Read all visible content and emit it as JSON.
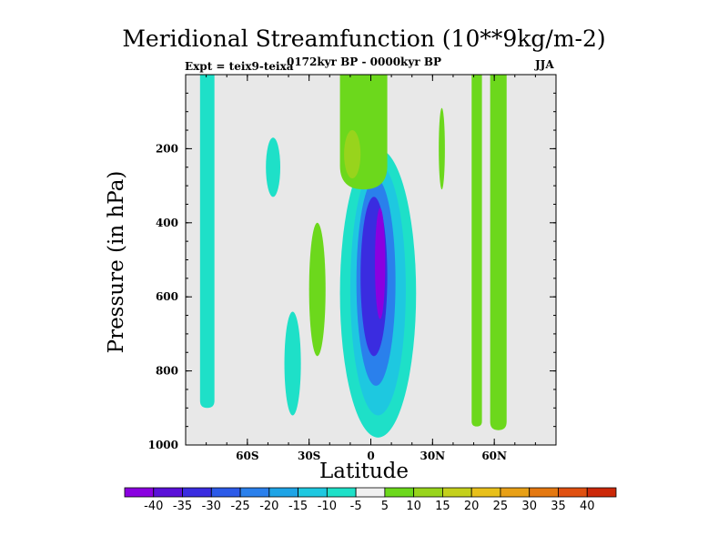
{
  "chart_data": {
    "type": "contour",
    "title": "Meridional Streamfunction (10**9kg/m-2)",
    "subtitle": "0172kyr BP - 0000kyr BP",
    "experiment": "Expt = teix9-teixa",
    "season": "JJA",
    "xlabel": "Latitude",
    "ylabel": "Pressure (in hPa)",
    "xlim": [
      -90,
      90
    ],
    "ylim": [
      1000,
      0
    ],
    "x_ticks": [
      -60,
      -30,
      0,
      30,
      60
    ],
    "x_tick_labels": [
      "60S",
      "30S",
      "0",
      "30N",
      "60N"
    ],
    "y_ticks": [
      200,
      400,
      600,
      800,
      1000
    ],
    "y_tick_labels": [
      "200",
      "400",
      "600",
      "800",
      "1000"
    ],
    "background_color": "#e8e8e8",
    "colorbar": {
      "labels": [
        "-40",
        "-35",
        "-30",
        "-25",
        "-20",
        "-15",
        "-10",
        "-5",
        "5",
        "10",
        "15",
        "20",
        "25",
        "30",
        "35",
        "40"
      ],
      "colors": [
        "#8a00e0",
        "#5a10d8",
        "#3a2ce0",
        "#2c5ae8",
        "#2a80ec",
        "#1ea4e6",
        "#1ec8e0",
        "#1ee0c8",
        "#f0f0f0",
        "#6cd81c",
        "#98d41c",
        "#c4d01c",
        "#e8c01a",
        "#e8a016",
        "#e47810",
        "#e05010",
        "#cc2808"
      ]
    },
    "regions": [
      {
        "level": -5,
        "lat_range": [
          -83,
          -76
        ],
        "p_range": [
          0,
          900
        ]
      },
      {
        "level": -5,
        "lat_range": [
          -51,
          -44
        ],
        "p_range": [
          170,
          330
        ]
      },
      {
        "level": -5,
        "lat_range": [
          -42,
          -34
        ],
        "p_range": [
          640,
          920
        ]
      },
      {
        "level": -5,
        "lat_range": [
          -15,
          22
        ],
        "p_range": [
          200,
          980
        ]
      },
      {
        "level": -10,
        "lat_range": [
          -10,
          17
        ],
        "p_range": [
          240,
          920
        ]
      },
      {
        "level": -20,
        "lat_range": [
          -7,
          12
        ],
        "p_range": [
          280,
          840
        ]
      },
      {
        "level": -30,
        "lat_range": [
          -5,
          8
        ],
        "p_range": [
          330,
          760
        ]
      },
      {
        "level": -40,
        "lat_range": [
          2,
          7
        ],
        "p_range": [
          360,
          660
        ]
      },
      {
        "level": 5,
        "lat_range": [
          -30,
          -22
        ],
        "p_range": [
          400,
          760
        ]
      },
      {
        "level": 5,
        "lat_range": [
          -15,
          8
        ],
        "p_range": [
          0,
          310
        ]
      },
      {
        "level": 10,
        "lat_range": [
          -13,
          -5
        ],
        "p_range": [
          150,
          280
        ]
      },
      {
        "level": 5,
        "lat_range": [
          33,
          36
        ],
        "p_range": [
          90,
          310
        ]
      },
      {
        "level": 5,
        "lat_range": [
          49,
          54
        ],
        "p_range": [
          0,
          950
        ]
      },
      {
        "level": 5,
        "lat_range": [
          58,
          66
        ],
        "p_range": [
          0,
          960
        ]
      }
    ]
  }
}
